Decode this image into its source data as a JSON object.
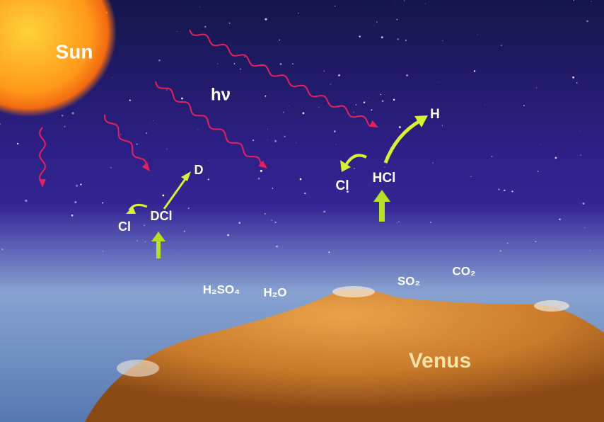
{
  "labels": {
    "sun": "Sun",
    "photon": "hν",
    "d": "D",
    "dcl": "DCl",
    "cl_left": "Cl",
    "h": "H",
    "hcl": "HCl",
    "cl_right": "Cl",
    "h2so4": "H₂SO₄",
    "h2o": "H₂O",
    "so2": "SO₂",
    "co2": "CO₂",
    "venus": "Venus"
  }
}
